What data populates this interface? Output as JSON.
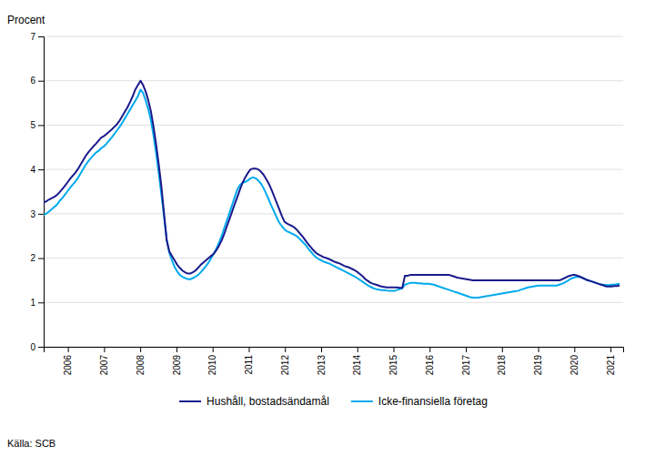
{
  "chart_data": {
    "type": "line",
    "ylabel": "Procent",
    "source": "Källa: SCB",
    "x": [
      2005.33,
      2005.40236,
      2005.47473,
      2005.54709,
      2005.61945,
      2005.69182,
      2005.76418,
      2005.83655,
      2005.90891,
      2005.98127,
      2006.05364,
      2006.126,
      2006.19836,
      2006.27073,
      2006.34309,
      2006.41545,
      2006.48782,
      2006.56018,
      2006.63255,
      2006.70491,
      2006.77727,
      2006.84964,
      2006.922,
      2006.99436,
      2007.06673,
      2007.13909,
      2007.21145,
      2007.28382,
      2007.35618,
      2007.42855,
      2007.50091,
      2007.57327,
      2007.64564,
      2007.718,
      2007.79036,
      2007.86273,
      2007.93509,
      2008.00745,
      2008.07982,
      2008.15218,
      2008.22455,
      2008.29691,
      2008.36927,
      2008.44164,
      2008.514,
      2008.58636,
      2008.65873,
      2008.73109,
      2008.80345,
      2008.87582,
      2008.94818,
      2009.02055,
      2009.09291,
      2009.16527,
      2009.23764,
      2009.31,
      2009.38236,
      2009.45473,
      2009.52709,
      2009.59945,
      2009.67182,
      2009.74418,
      2009.81655,
      2009.88891,
      2009.96127,
      2010.03364,
      2010.106,
      2010.17836,
      2010.25073,
      2010.32309,
      2010.39545,
      2010.46782,
      2010.54018,
      2010.61255,
      2010.68491,
      2010.75727,
      2010.82964,
      2010.902,
      2010.97436,
      2011.04673,
      2011.11909,
      2011.19145,
      2011.26382,
      2011.33618,
      2011.40855,
      2011.48091,
      2011.55327,
      2011.62564,
      2011.698,
      2011.77036,
      2011.84273,
      2011.91509,
      2011.98745,
      2012.05982,
      2012.13218,
      2012.20455,
      2012.27691,
      2012.34927,
      2012.42164,
      2012.494,
      2012.56636,
      2012.63873,
      2012.71109,
      2012.78345,
      2012.85582,
      2012.92818,
      2013.00055,
      2013.07291,
      2013.14527,
      2013.21764,
      2013.29,
      2013.36236,
      2013.43473,
      2013.50709,
      2013.57945,
      2013.65182,
      2013.72418,
      2013.79655,
      2013.86891,
      2013.94127,
      2014.01364,
      2014.086,
      2014.15836,
      2014.23073,
      2014.30309,
      2014.37545,
      2014.44782,
      2014.52018,
      2014.59255,
      2014.66491,
      2014.73727,
      2014.80964,
      2014.882,
      2014.95436,
      2015.02673,
      2015.09909,
      2015.17145,
      2015.24382,
      2015.31618,
      2015.38855,
      2015.46091,
      2015.53327,
      2015.60564,
      2015.678,
      2015.75036,
      2015.82273,
      2015.89509,
      2015.96745,
      2016.03982,
      2016.11218,
      2016.18455,
      2016.25691,
      2016.32927,
      2016.40164,
      2016.474,
      2016.54636,
      2016.61873,
      2016.69109,
      2016.76345,
      2016.83582,
      2016.90818,
      2016.98055,
      2017.05291,
      2017.12527,
      2017.19764,
      2017.27,
      2017.34236,
      2017.41473,
      2017.48709,
      2017.55945,
      2017.63182,
      2017.70418,
      2017.77655,
      2017.84891,
      2017.92127,
      2017.99364,
      2018.066,
      2018.13836,
      2018.21073,
      2018.28309,
      2018.35545,
      2018.42782,
      2018.50018,
      2018.57255,
      2018.64491,
      2018.71727,
      2018.78964,
      2018.862,
      2018.93436,
      2019.00673,
      2019.07909,
      2019.15145,
      2019.22382,
      2019.29618,
      2019.36855,
      2019.44091,
      2019.51327,
      2019.58564,
      2019.658,
      2019.73036,
      2019.80273,
      2019.87509,
      2019.94745,
      2020.01982,
      2020.09218,
      2020.16455,
      2020.23691,
      2020.30927,
      2020.38164,
      2020.454,
      2020.52636,
      2020.59873,
      2020.67109,
      2020.74345,
      2020.81582,
      2020.88818,
      2020.96055,
      2021.03291,
      2021.10527,
      2021.17764,
      2021.25
    ],
    "series": [
      {
        "name": "Hushåll, bostadsändamål",
        "color": "#1a1a8c",
        "values": [
          3.25,
          3.28,
          3.32,
          3.35,
          3.38,
          3.42,
          3.48,
          3.55,
          3.62,
          3.7,
          3.78,
          3.85,
          3.92,
          4.0,
          4.1,
          4.2,
          4.3,
          4.38,
          4.45,
          4.52,
          4.58,
          4.65,
          4.72,
          4.75,
          4.8,
          4.85,
          4.9,
          4.96,
          5.02,
          5.1,
          5.2,
          5.3,
          5.4,
          5.52,
          5.65,
          5.8,
          5.9,
          6.0,
          5.9,
          5.75,
          5.55,
          5.3,
          4.95,
          4.55,
          4.1,
          3.6,
          3.0,
          2.4,
          2.15,
          2.05,
          1.95,
          1.85,
          1.78,
          1.72,
          1.68,
          1.65,
          1.65,
          1.68,
          1.72,
          1.78,
          1.85,
          1.9,
          1.95,
          2.0,
          2.05,
          2.1,
          2.18,
          2.28,
          2.4,
          2.55,
          2.72,
          2.88,
          3.05,
          3.22,
          3.38,
          3.55,
          3.7,
          3.82,
          3.92,
          4.0,
          4.02,
          4.02,
          4.0,
          3.95,
          3.88,
          3.78,
          3.68,
          3.55,
          3.4,
          3.25,
          3.1,
          2.95,
          2.82,
          2.78,
          2.75,
          2.72,
          2.68,
          2.62,
          2.55,
          2.48,
          2.4,
          2.32,
          2.25,
          2.18,
          2.12,
          2.08,
          2.05,
          2.02,
          2.0,
          1.98,
          1.95,
          1.92,
          1.9,
          1.88,
          1.85,
          1.82,
          1.8,
          1.78,
          1.75,
          1.72,
          1.68,
          1.63,
          1.58,
          1.52,
          1.48,
          1.44,
          1.42,
          1.4,
          1.38,
          1.36,
          1.35,
          1.34,
          1.34,
          1.34,
          1.34,
          1.34,
          1.33,
          1.33,
          1.6,
          1.6,
          1.62,
          1.62,
          1.62,
          1.62,
          1.62,
          1.62,
          1.62,
          1.62,
          1.62,
          1.62,
          1.62,
          1.62,
          1.62,
          1.62,
          1.62,
          1.62,
          1.6,
          1.58,
          1.56,
          1.55,
          1.54,
          1.53,
          1.52,
          1.51,
          1.5,
          1.5,
          1.5,
          1.5,
          1.5,
          1.5,
          1.5,
          1.5,
          1.5,
          1.5,
          1.5,
          1.5,
          1.5,
          1.5,
          1.5,
          1.5,
          1.5,
          1.5,
          1.5,
          1.5,
          1.5,
          1.5,
          1.5,
          1.5,
          1.5,
          1.5,
          1.5,
          1.5,
          1.5,
          1.5,
          1.5,
          1.5,
          1.5,
          1.5,
          1.52,
          1.55,
          1.58,
          1.6,
          1.62,
          1.62,
          1.6,
          1.58,
          1.55,
          1.52,
          1.5,
          1.48,
          1.46,
          1.44,
          1.42,
          1.4,
          1.38,
          1.36,
          1.36,
          1.36,
          1.37,
          1.37,
          1.38
        ]
      },
      {
        "name": "Icke-finansiella företag",
        "color": "#00aaee",
        "values": [
          2.98,
          3.0,
          3.05,
          3.1,
          3.15,
          3.2,
          3.28,
          3.35,
          3.42,
          3.5,
          3.58,
          3.65,
          3.72,
          3.8,
          3.9,
          4.0,
          4.1,
          4.18,
          4.25,
          4.32,
          4.38,
          4.42,
          4.48,
          4.52,
          4.58,
          4.65,
          4.72,
          4.8,
          4.88,
          4.96,
          5.05,
          5.15,
          5.25,
          5.35,
          5.45,
          5.55,
          5.65,
          5.8,
          5.72,
          5.55,
          5.35,
          5.1,
          4.75,
          4.35,
          3.9,
          3.42,
          2.92,
          2.42,
          2.12,
          1.95,
          1.8,
          1.7,
          1.62,
          1.58,
          1.55,
          1.53,
          1.52,
          1.55,
          1.58,
          1.62,
          1.68,
          1.75,
          1.82,
          1.9,
          2.0,
          2.1,
          2.22,
          2.35,
          2.5,
          2.68,
          2.85,
          3.02,
          3.2,
          3.38,
          3.55,
          3.65,
          3.7,
          3.72,
          3.75,
          3.8,
          3.82,
          3.8,
          3.75,
          3.68,
          3.58,
          3.45,
          3.32,
          3.18,
          3.05,
          2.92,
          2.8,
          2.72,
          2.65,
          2.6,
          2.58,
          2.55,
          2.52,
          2.48,
          2.42,
          2.36,
          2.3,
          2.22,
          2.15,
          2.08,
          2.02,
          1.98,
          1.95,
          1.92,
          1.9,
          1.88,
          1.85,
          1.82,
          1.79,
          1.76,
          1.73,
          1.7,
          1.67,
          1.64,
          1.61,
          1.58,
          1.54,
          1.5,
          1.46,
          1.42,
          1.38,
          1.35,
          1.32,
          1.3,
          1.29,
          1.28,
          1.28,
          1.27,
          1.26,
          1.26,
          1.26,
          1.28,
          1.3,
          1.32,
          1.4,
          1.42,
          1.44,
          1.44,
          1.44,
          1.43,
          1.43,
          1.42,
          1.42,
          1.42,
          1.41,
          1.4,
          1.38,
          1.36,
          1.34,
          1.32,
          1.3,
          1.28,
          1.26,
          1.24,
          1.22,
          1.2,
          1.18,
          1.16,
          1.14,
          1.12,
          1.11,
          1.11,
          1.11,
          1.12,
          1.13,
          1.14,
          1.15,
          1.16,
          1.17,
          1.18,
          1.19,
          1.2,
          1.21,
          1.22,
          1.23,
          1.24,
          1.25,
          1.26,
          1.28,
          1.3,
          1.32,
          1.34,
          1.35,
          1.36,
          1.37,
          1.38,
          1.38,
          1.38,
          1.38,
          1.38,
          1.38,
          1.38,
          1.38,
          1.4,
          1.42,
          1.45,
          1.48,
          1.52,
          1.55,
          1.57,
          1.58,
          1.57,
          1.55,
          1.52,
          1.5,
          1.48,
          1.46,
          1.44,
          1.42,
          1.4,
          1.4,
          1.39,
          1.39,
          1.4,
          1.4,
          1.41,
          1.42
        ]
      }
    ],
    "xlim": [
      2005.33,
      2021.35
    ],
    "xticks": [
      2006,
      2007,
      2008,
      2009,
      2010,
      2011,
      2012,
      2013,
      2014,
      2015,
      2016,
      2017,
      2018,
      2019,
      2020,
      2021
    ],
    "ylim": [
      0,
      7
    ],
    "yticks": [
      0,
      1,
      2,
      3,
      4,
      5,
      6,
      7
    ],
    "grid": true,
    "legend": "bottom"
  }
}
